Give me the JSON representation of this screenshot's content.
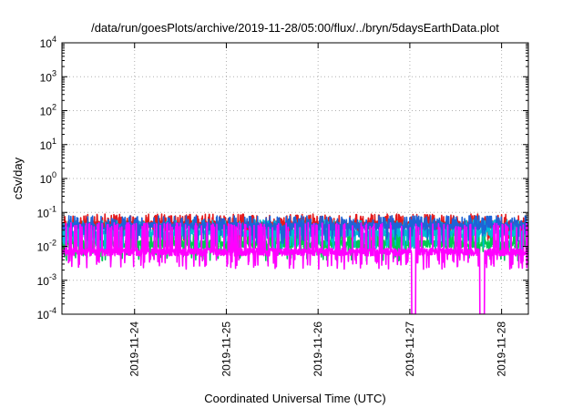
{
  "chart_data": {
    "type": "line",
    "title": "/data/run/goesPlots/archive/2019-11-28/05:00/flux/../bryn/5daysEarthData.plot",
    "xlabel": "Coordinated Universal Time (UTC)",
    "ylabel": "cSv/day",
    "x_scale": "time",
    "x_range": [
      "2019-11-23T05:00",
      "2019-11-28T07:00"
    ],
    "x_ticks": [
      "2019-11-24",
      "2019-11-25",
      "2019-11-26",
      "2019-11-27",
      "2019-11-28"
    ],
    "y_scale": "log",
    "ylim": [
      0.0001,
      10000
    ],
    "y_ticks": [
      {
        "value": 0.0001,
        "base": "10",
        "exp": "-4"
      },
      {
        "value": 0.001,
        "base": "10",
        "exp": "-3"
      },
      {
        "value": 0.01,
        "base": "10",
        "exp": "-2"
      },
      {
        "value": 0.1,
        "base": "10",
        "exp": "-1"
      },
      {
        "value": 1,
        "base": "10",
        "exp": "0"
      },
      {
        "value": 10,
        "base": "10",
        "exp": "1"
      },
      {
        "value": 100,
        "base": "10",
        "exp": "2"
      },
      {
        "value": 1000,
        "base": "10",
        "exp": "3"
      },
      {
        "value": 10000,
        "base": "10",
        "exp": "4"
      }
    ],
    "grid": true,
    "legend": "none",
    "series": [
      {
        "color": "#e41a1c",
        "baseline": 0.045,
        "spike_max": 0.09,
        "x": [],
        "values": []
      },
      {
        "color": "#00c853",
        "baseline": 0.012,
        "spike_max": 0.03,
        "x": [],
        "values": []
      },
      {
        "color": "#00bcd4",
        "baseline": 0.025,
        "spike_max": 0.06,
        "x": [],
        "values": []
      },
      {
        "color": "#1e63d6",
        "baseline": 0.04,
        "spike_max": 0.08,
        "x": [],
        "values": []
      },
      {
        "color": "#ff00ff",
        "baseline": 0.007,
        "spike_max": 0.05,
        "dropouts": [
          {
            "from": "2019-11-27T00:30",
            "to": "2019-11-27T01:30",
            "value": 0.0001
          },
          {
            "from": "2019-11-27T18:20",
            "to": "2019-11-27T19:30",
            "value": 0.0001
          }
        ],
        "x": [],
        "values": []
      }
    ]
  }
}
